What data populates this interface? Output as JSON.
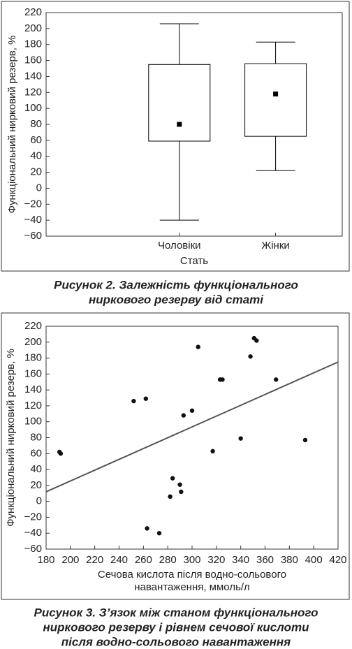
{
  "chart_data": [
    {
      "type": "box",
      "y_label": "Функціональний нирковий резерв, %",
      "x_label": "Стать",
      "categories": [
        "Чоловіки",
        "Жінки"
      ],
      "whisker_high": [
        206,
        183
      ],
      "box_high": [
        155,
        156
      ],
      "box_low": [
        59,
        65
      ],
      "whisker_low": [
        -40,
        22
      ],
      "mean": [
        80,
        118
      ],
      "color": "#000000",
      "ylim": [
        -60,
        220
      ],
      "yticks": [
        {
          "value": -60,
          "label": "−60"
        },
        {
          "value": -40,
          "label": "−40"
        },
        {
          "value": -20,
          "label": "−20"
        },
        0,
        20,
        40,
        60,
        80,
        100,
        120,
        140,
        160,
        180,
        200,
        220
      ],
      "grid": false,
      "caption": [
        "Рисунок 2.  Залежність функціонального",
        "ниркового резерву від статі"
      ]
    },
    {
      "type": "scatter",
      "y_label": "Функціональний нирковий резерв, %",
      "x_label": [
        "Сечова кислота після водно-сольового",
        "навантаження, ммоль/л"
      ],
      "x": [
        191,
        192,
        252,
        262,
        263,
        273,
        282,
        284,
        290,
        291,
        293,
        300,
        305,
        317,
        323,
        325,
        340,
        348,
        351,
        353,
        369,
        393
      ],
      "values": [
        62,
        60,
        126,
        129,
        -34,
        -40,
        6,
        29,
        21,
        12,
        108,
        114,
        194,
        63,
        153,
        153,
        79,
        182,
        205,
        202,
        153,
        77
      ],
      "color": "#111111",
      "trend": {
        "x": [
          180,
          420
        ],
        "y": [
          12,
          175
        ]
      },
      "xlim": [
        180,
        420
      ],
      "xticks": [
        180,
        200,
        220,
        240,
        260,
        280,
        300,
        320,
        340,
        360,
        380,
        400,
        420
      ],
      "ylim": [
        -60,
        220
      ],
      "yticks": [
        {
          "value": -60,
          "label": "−60"
        },
        {
          "value": -40,
          "label": "−40"
        },
        {
          "value": -20,
          "label": "−20"
        },
        0,
        20,
        40,
        60,
        80,
        100,
        120,
        140,
        160,
        180,
        200,
        220
      ],
      "grid": false,
      "caption": [
        "Рисунок 3.  З’язок між станом функціонального",
        "ниркового резерву і рівнем сечової кислоти",
        "після водно-сольового навантаження"
      ]
    }
  ]
}
